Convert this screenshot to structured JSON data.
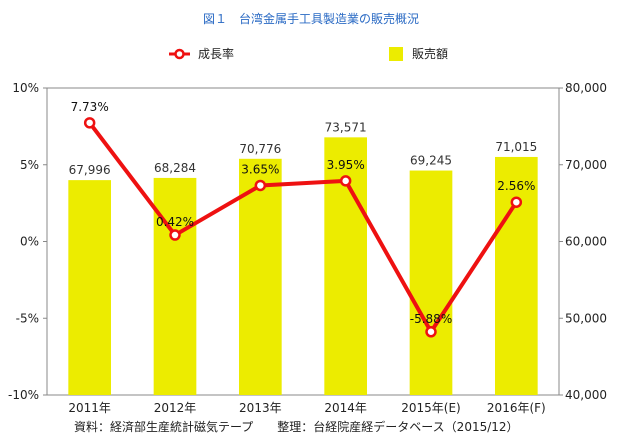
{
  "chart_data": {
    "type": "bar+line",
    "title": "図１　台湾金属手工具製造業の販売概況",
    "categories": [
      "2011年",
      "2012年",
      "2013年",
      "2014年",
      "2015年(E)",
      "2016年(F)"
    ],
    "series": [
      {
        "name": "販売額",
        "type": "bar",
        "axis": "right",
        "color": "#ecec00",
        "values": [
          67996,
          68284,
          70776,
          73571,
          69245,
          71015
        ],
        "labels": [
          "67,996",
          "68,284",
          "70,776",
          "73,571",
          "69,245",
          "71,015"
        ]
      },
      {
        "name": "成長率",
        "type": "line",
        "axis": "left",
        "color": "#ee1111",
        "values": [
          7.73,
          0.42,
          3.65,
          3.95,
          -5.88,
          2.56
        ],
        "labels": [
          "7.73%",
          "0.42%",
          "3.65%",
          "3.95%",
          "-5.88%",
          "2.56%"
        ]
      }
    ],
    "y_left": {
      "min": -10,
      "max": 10,
      "ticks": [
        10,
        5,
        0,
        -5,
        -10
      ],
      "tick_labels": [
        "10%",
        "5%",
        "0%",
        "-5%",
        "-10%"
      ]
    },
    "y_right": {
      "min": 40000,
      "max": 80000,
      "ticks": [
        80000,
        70000,
        60000,
        50000,
        40000
      ],
      "tick_labels": [
        "80,000",
        "70,000",
        "60,000",
        "50,000",
        "40,000"
      ]
    },
    "grid": false,
    "legend_position": "top"
  },
  "source_note": "資料：経済部生産統計磁気テープ　　整理：台経院産経データベース（2015/12）"
}
